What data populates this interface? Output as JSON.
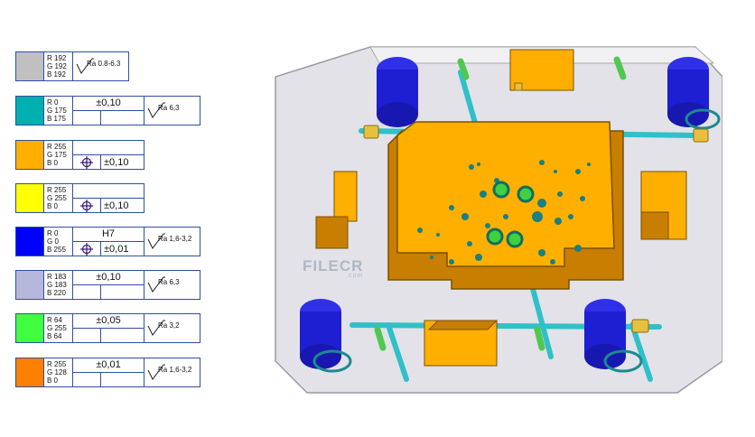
{
  "legend": [
    {
      "swatch": "#c0c0c0",
      "r": "R  192",
      "g": "G  192",
      "b": "B  192",
      "roughness": "Ra 0.8-6.3"
    },
    {
      "swatch": "#00afaf",
      "r": "R  0",
      "g": "G  175",
      "b": "B  175",
      "tol_top": "±0,10",
      "roughness": "Ra 6,3"
    },
    {
      "swatch": "#ffaf00",
      "r": "R  255",
      "g": "G  175",
      "b": "B  0",
      "tol_top": "",
      "tol_bot": "±0,10",
      "target": true
    },
    {
      "swatch": "#ffff00",
      "r": "R  255",
      "g": "G  255",
      "b": "B  0",
      "tol_top": "",
      "tol_bot": "±0,10",
      "target": true
    },
    {
      "swatch": "#0000ff",
      "r": "R  0",
      "g": "G  0",
      "b": "B  255",
      "tol_top": "H7",
      "tol_bot": "±0,01",
      "target": true,
      "roughness": "Ra 1,6-3,2"
    },
    {
      "swatch": "#b7b7dc",
      "r": "R  183",
      "g": "G  183",
      "b": "B  220",
      "tol_top": "±0,10",
      "roughness": "Ra 6,3"
    },
    {
      "swatch": "#40ff40",
      "r": "R  64",
      "g": "G  255",
      "b": "B  64",
      "tol_top": "±0,05",
      "roughness": "Ra 3,2"
    },
    {
      "swatch": "#ff8000",
      "r": "R  255",
      "g": "G  128",
      "b": "B  0",
      "tol_top": "±0,01",
      "roughness": "Ra 1,6-3,2"
    }
  ],
  "watermark": {
    "brand": "FILECR",
    "sub": ".com"
  },
  "colors": {
    "plate": "#e6e6ea",
    "core": "#ffaf00",
    "core_dark": "#c87e00",
    "pillar": "#1e1ed2",
    "pin": "#40d0d0",
    "green": "#40c040",
    "brass": "#e8c040"
  }
}
